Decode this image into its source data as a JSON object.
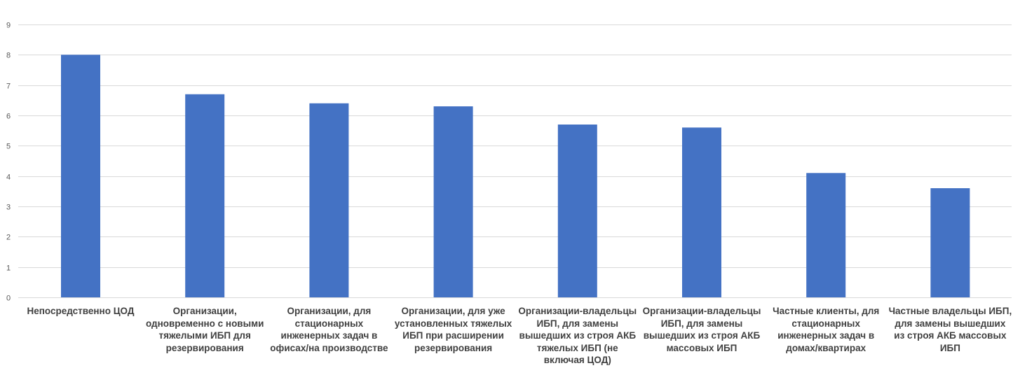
{
  "chart_data": {
    "type": "bar",
    "title": "",
    "xlabel": "",
    "ylabel": "",
    "ylim": [
      0,
      9
    ],
    "yticks": [
      "0",
      "1",
      "2",
      "3",
      "4",
      "5",
      "6",
      "7",
      "8",
      "9"
    ],
    "grid": true,
    "legend": "none",
    "categories": [
      "Непосредственно ЦОД",
      "Организации,\nодновременно с новыми\nтяжелыми ИБП для\nрезервирования",
      "Организации, для\nстационарных\nинженерных задач в\nофисах/на производстве",
      "Организации, для уже\nустановленных тяжелых\nИБП при расширении\nрезервирования",
      "Организации-владельцы\nИБП, для замены\nвышедших из строя АКБ\nтяжелых ИБП (не\nвключая ЦОД)",
      "Организации-владельцы\nИБП, для замены\nвышедших из строя АКБ\nмассовых ИБП",
      "Частные клиенты, для\nстационарных\nинженерных задач в\nдомах/квартирах",
      "Частные владельцы ИБП,\nдля замены вышедших\nиз строя АКБ массовых\nИБП"
    ],
    "values": [
      8.0,
      6.7,
      6.4,
      6.3,
      5.7,
      5.6,
      4.1,
      3.6
    ],
    "colors": {
      "bar": "#4472C4",
      "grid": "#D9D9D9",
      "tick_text": "#595959",
      "label_text": "#404040"
    }
  }
}
